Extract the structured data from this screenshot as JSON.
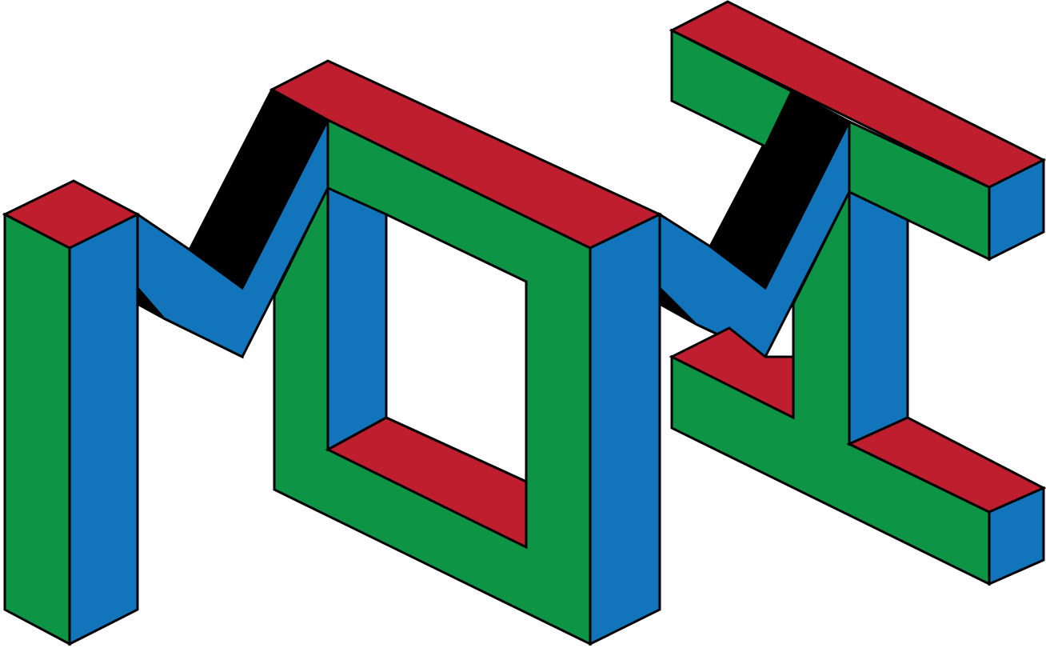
{
  "logo": {
    "lettering": "MOAI",
    "colors": {
      "top_face": "#BE1E2D",
      "left_face": "#0D9444",
      "right_face": "#1275BC",
      "shadow_face": "#000000",
      "outline": "#000000",
      "background": "#FFFFFF"
    },
    "style": "isometric-3d-block-letters"
  }
}
